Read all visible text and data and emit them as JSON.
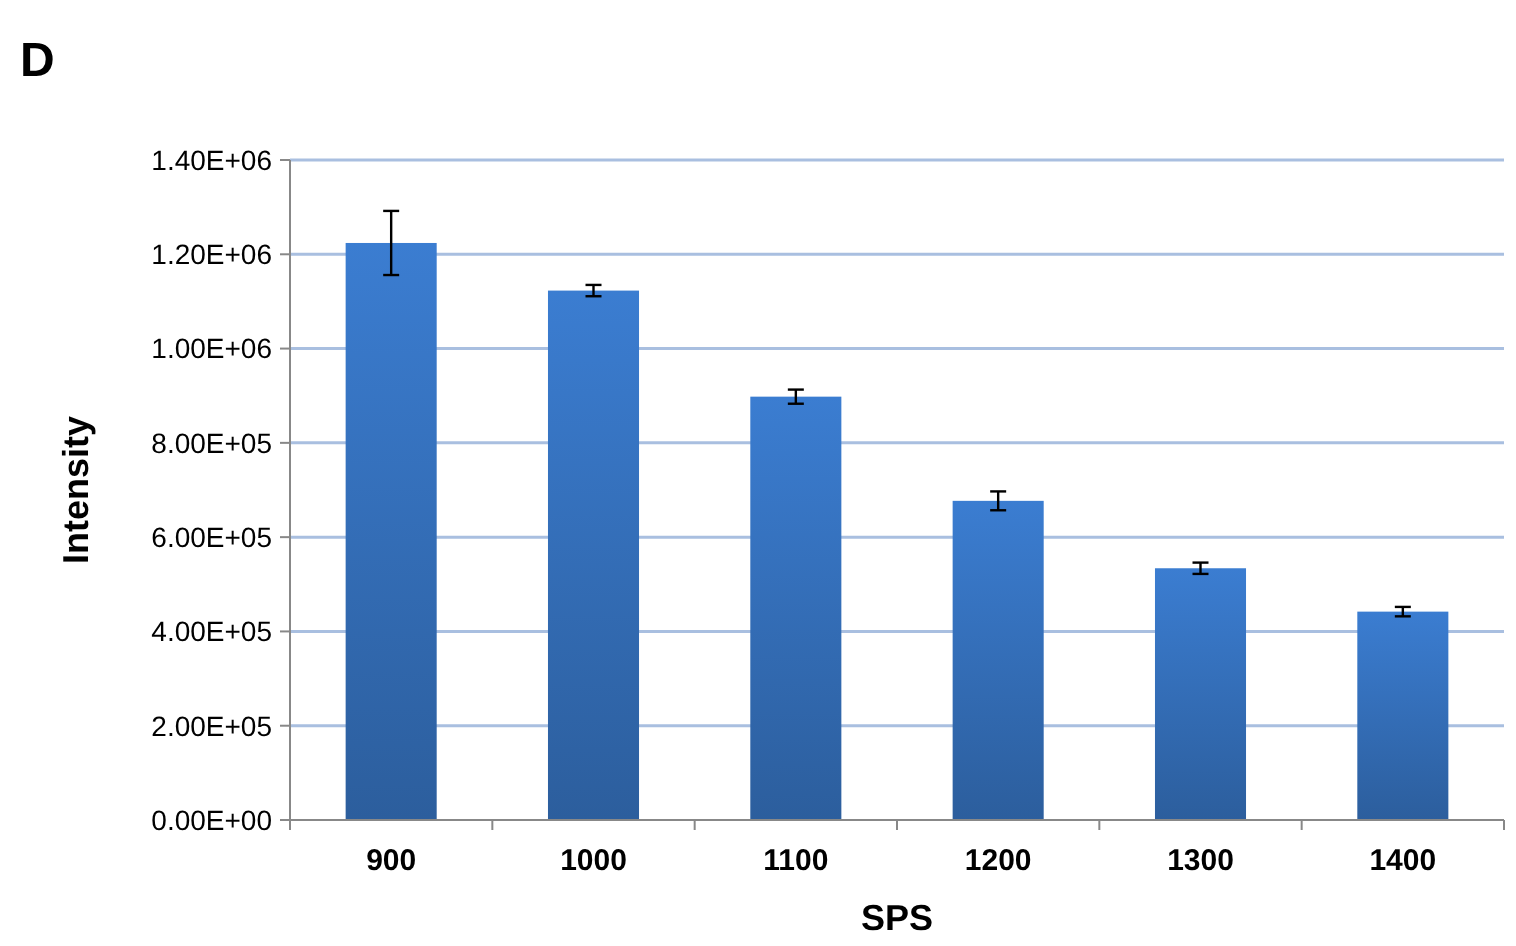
{
  "chart_data": {
    "type": "bar",
    "title": "D",
    "xlabel": "SPS",
    "ylabel": "Intensity",
    "categories": [
      "900",
      "1000",
      "1100",
      "1200",
      "1300",
      "1400"
    ],
    "values": [
      1224000,
      1123000,
      898000,
      677000,
      534000,
      442000
    ],
    "errors": [
      68000,
      12000,
      15000,
      20000,
      12000,
      10000
    ],
    "color": "#3b7dd1",
    "ylim": [
      0,
      1400000
    ],
    "yticks": [
      {
        "value": 0,
        "label": "0.00E+00"
      },
      {
        "value": 200000,
        "label": "2.00E+05"
      },
      {
        "value": 400000,
        "label": "4.00E+05"
      },
      {
        "value": 600000,
        "label": "6.00E+05"
      },
      {
        "value": 800000,
        "label": "8.00E+05"
      },
      {
        "value": 1000000,
        "label": "1.00E+06"
      },
      {
        "value": 1200000,
        "label": "1.20E+06"
      },
      {
        "value": 1400000,
        "label": "1.40E+06"
      }
    ],
    "grid": "y"
  }
}
